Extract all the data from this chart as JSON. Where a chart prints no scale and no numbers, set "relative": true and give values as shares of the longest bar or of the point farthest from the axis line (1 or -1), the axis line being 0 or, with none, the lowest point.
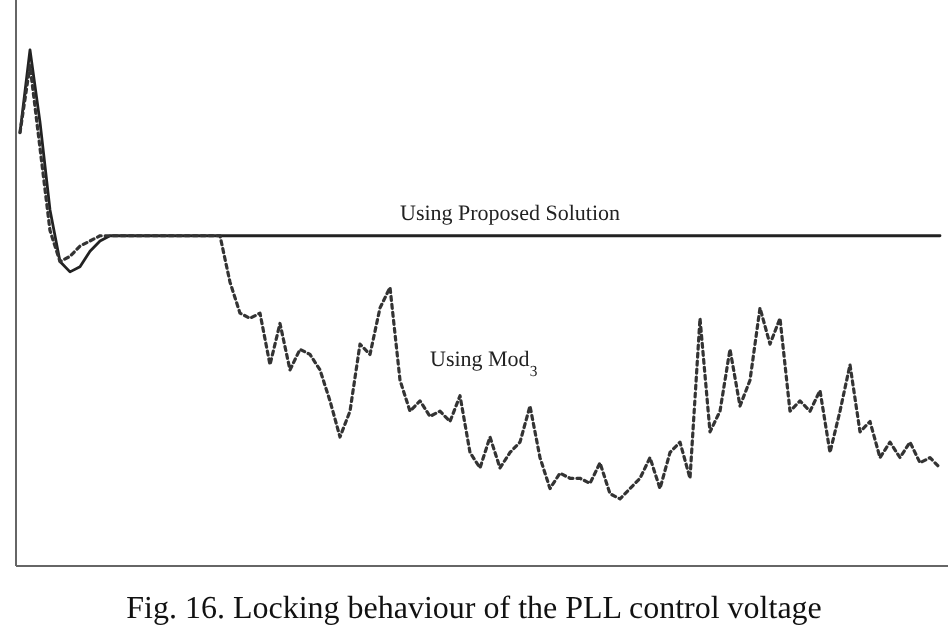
{
  "chart_data": {
    "type": "line",
    "title": "Fig. 16. Locking behaviour of the PLL control voltage",
    "relative": true,
    "categories": [
      null,
      null,
      null,
      null,
      null,
      null,
      null,
      null,
      null,
      null,
      null,
      null,
      null,
      null,
      null,
      null,
      null,
      null,
      null,
      null,
      null,
      null,
      null,
      null,
      null,
      null,
      null,
      null,
      null,
      null,
      null,
      null,
      null,
      null,
      null,
      null,
      null,
      null,
      null,
      null,
      null,
      null,
      null,
      null,
      null,
      null,
      null,
      null,
      null,
      null,
      null,
      null,
      null,
      null,
      null,
      null,
      null,
      null,
      null,
      null,
      null,
      null,
      null,
      null,
      null,
      null,
      null,
      null,
      null,
      null,
      null,
      null,
      null,
      null,
      null,
      null,
      null,
      null,
      null,
      null,
      null,
      null,
      null,
      null,
      null,
      null,
      null,
      null,
      null,
      null,
      null,
      null,
      null
    ],
    "series": [
      {
        "name": "Using Proposed Solution",
        "color": "#222222",
        "line_style": "solid",
        "values": [
          0.84,
          1.0,
          0.86,
          0.69,
          0.59,
          0.57,
          0.58,
          0.61,
          0.63,
          0.64,
          0.64,
          0.64,
          0.64,
          0.64,
          0.64,
          0.64,
          0.64,
          0.64,
          0.64,
          0.64,
          0.64,
          0.64,
          0.64,
          0.64,
          0.64,
          0.64,
          0.64,
          0.64,
          0.64,
          0.64,
          0.64,
          0.64,
          0.64,
          0.64,
          0.64,
          0.64,
          0.64,
          0.64,
          0.64,
          0.64,
          0.64,
          0.64,
          0.64,
          0.64,
          0.64,
          0.64,
          0.64,
          0.64,
          0.64,
          0.64,
          0.64,
          0.64,
          0.64,
          0.64,
          0.64,
          0.64,
          0.64,
          0.64,
          0.64,
          0.64,
          0.64,
          0.64,
          0.64,
          0.64,
          0.64,
          0.64,
          0.64,
          0.64,
          0.64,
          0.64,
          0.64,
          0.64,
          0.64,
          0.64,
          0.64,
          0.64,
          0.64,
          0.64,
          0.64,
          0.64,
          0.64,
          0.64,
          0.64,
          0.64,
          0.64,
          0.64,
          0.64,
          0.64,
          0.64,
          0.64,
          0.64,
          0.64,
          0.64
        ]
      },
      {
        "name": "Using Mod$_{3}$",
        "color": "#333333",
        "line_style": "dotted",
        "values": [
          0.84,
          0.97,
          0.81,
          0.65,
          0.59,
          0.6,
          0.62,
          0.63,
          0.64,
          0.64,
          0.64,
          0.64,
          0.64,
          0.64,
          0.64,
          0.64,
          0.64,
          0.64,
          0.64,
          0.64,
          0.64,
          0.55,
          0.49,
          0.48,
          0.49,
          0.39,
          0.47,
          0.38,
          0.42,
          0.41,
          0.38,
          0.32,
          0.25,
          0.3,
          0.43,
          0.41,
          0.5,
          0.54,
          0.36,
          0.3,
          0.32,
          0.29,
          0.3,
          0.28,
          0.33,
          0.22,
          0.19,
          0.25,
          0.19,
          0.22,
          0.24,
          0.31,
          0.21,
          0.15,
          0.18,
          0.17,
          0.17,
          0.16,
          0.2,
          0.14,
          0.13,
          0.15,
          0.17,
          0.21,
          0.15,
          0.22,
          0.24,
          0.17,
          0.48,
          0.26,
          0.3,
          0.42,
          0.31,
          0.36,
          0.5,
          0.43,
          0.48,
          0.3,
          0.32,
          0.3,
          0.34,
          0.22,
          0.3,
          0.39,
          0.26,
          0.28,
          0.21,
          0.24,
          0.21,
          0.24,
          0.2,
          0.21,
          0.19
        ]
      }
    ]
  }
}
